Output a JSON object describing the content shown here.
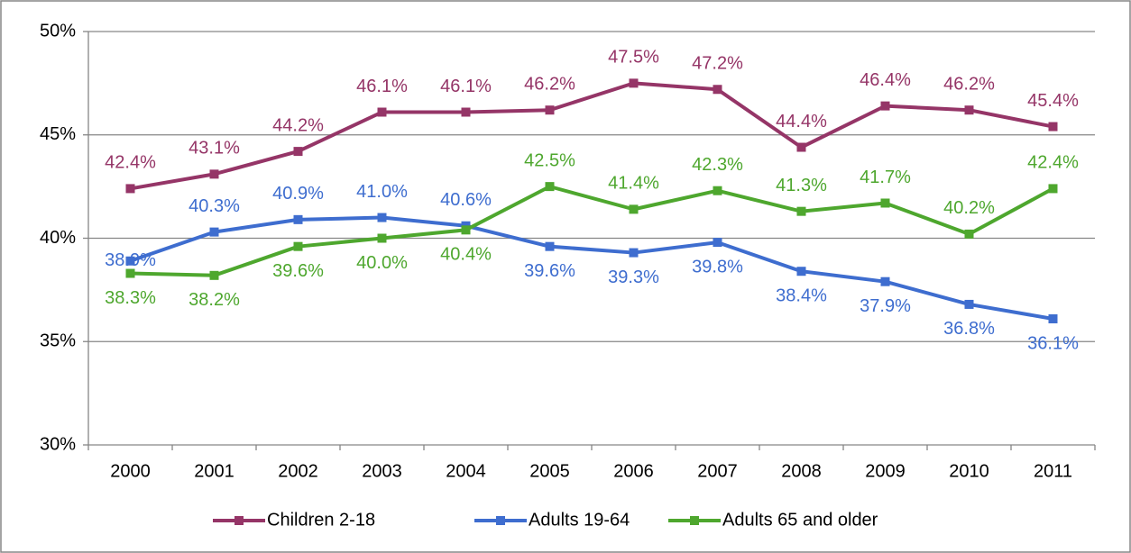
{
  "chart_data": {
    "type": "line",
    "categories": [
      "2000",
      "2001",
      "2002",
      "2003",
      "2004",
      "2005",
      "2006",
      "2007",
      "2008",
      "2009",
      "2010",
      "2011"
    ],
    "series": [
      {
        "name": "Children 2-18",
        "color": "#953567",
        "values": [
          42.4,
          43.1,
          44.2,
          46.1,
          46.1,
          46.2,
          47.5,
          47.2,
          44.4,
          46.4,
          46.2,
          45.4
        ],
        "value_labels": [
          "42.4%",
          "43.1%",
          "44.2%",
          "46.1%",
          "46.1%",
          "46.2%",
          "47.5%",
          "47.2%",
          "44.4%",
          "46.4%",
          "46.2%",
          "45.4%"
        ]
      },
      {
        "name": "Adults 19-64",
        "color": "#3e6dcf",
        "values": [
          38.9,
          40.3,
          40.9,
          41.0,
          40.6,
          39.6,
          39.3,
          39.8,
          38.4,
          37.9,
          36.8,
          36.1
        ],
        "value_labels": [
          "38.9%",
          "40.3%",
          "40.9%",
          "41.0%",
          "40.6%",
          "39.6%",
          "39.3%",
          "39.8%",
          "38.4%",
          "37.9%",
          "36.8%",
          "36.1%"
        ]
      },
      {
        "name": "Adults 65 and older",
        "color": "#4ea72e",
        "values": [
          38.3,
          38.2,
          39.6,
          40.0,
          40.4,
          42.5,
          41.4,
          42.3,
          41.3,
          41.7,
          40.2,
          42.4
        ],
        "value_labels": [
          "38.3%",
          "38.2%",
          "39.6%",
          "40.0%",
          "40.4%",
          "42.5%",
          "41.4%",
          "42.3%",
          "41.3%",
          "41.7%",
          "40.2%",
          "42.4%"
        ]
      }
    ],
    "ylim": [
      30,
      50
    ],
    "yticks": [
      {
        "value": 30,
        "label": "30%"
      },
      {
        "value": 35,
        "label": "35%"
      },
      {
        "value": 40,
        "label": "40%"
      },
      {
        "value": 45,
        "label": "45%"
      },
      {
        "value": 50,
        "label": "50%"
      }
    ],
    "grid": true,
    "legend": "bottom"
  }
}
